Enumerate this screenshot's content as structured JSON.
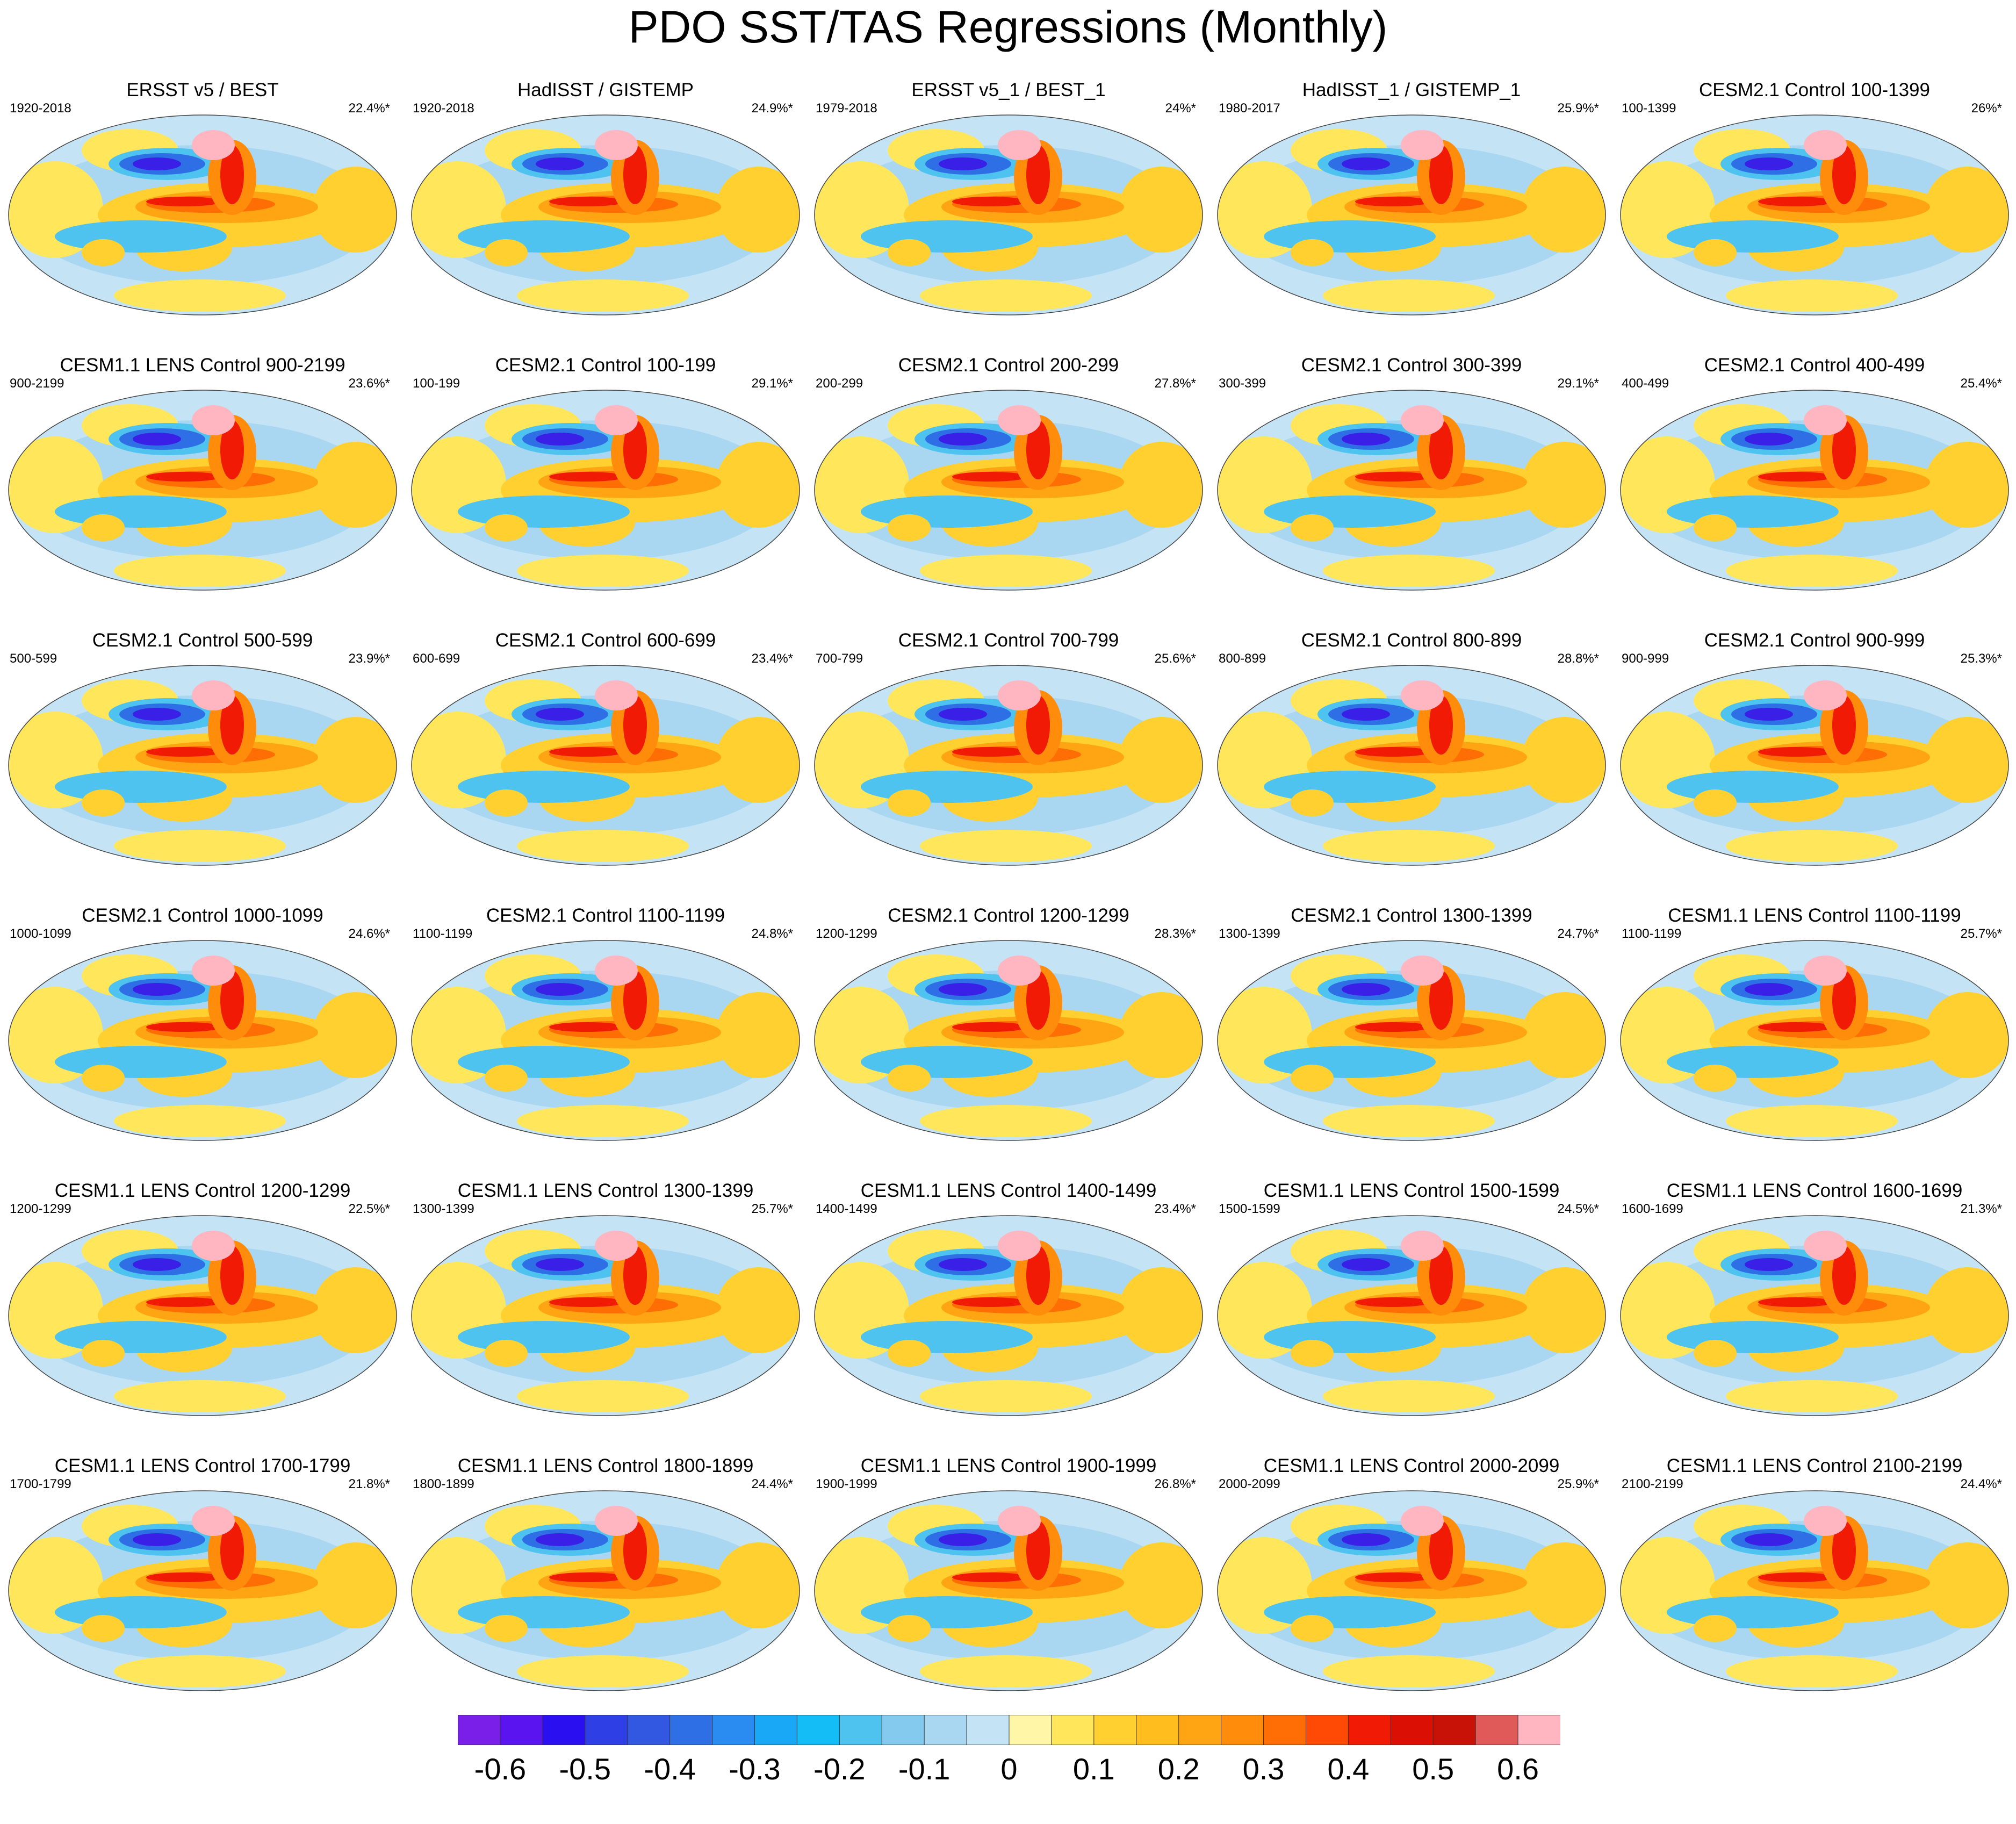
{
  "title": "PDO SST/TAS Regressions (Monthly)",
  "panels": [
    {
      "title": "ERSST v5 / BEST",
      "years": "1920-2018",
      "variance": "22.4%*"
    },
    {
      "title": "HadISST / GISTEMP",
      "years": "1920-2018",
      "variance": "24.9%*"
    },
    {
      "title": "ERSST v5_1 / BEST_1",
      "years": "1979-2018",
      "variance": "24%*"
    },
    {
      "title": "HadISST_1 / GISTEMP_1",
      "years": "1980-2017",
      "variance": "25.9%*"
    },
    {
      "title": "CESM2.1 Control 100-1399",
      "years": "100-1399",
      "variance": "26%*"
    },
    {
      "title": "CESM1.1 LENS Control 900-2199",
      "years": "900-2199",
      "variance": "23.6%*"
    },
    {
      "title": "CESM2.1 Control 100-199",
      "years": "100-199",
      "variance": "29.1%*"
    },
    {
      "title": "CESM2.1 Control 200-299",
      "years": "200-299",
      "variance": "27.8%*"
    },
    {
      "title": "CESM2.1 Control 300-399",
      "years": "300-399",
      "variance": "29.1%*"
    },
    {
      "title": "CESM2.1 Control 400-499",
      "years": "400-499",
      "variance": "25.4%*"
    },
    {
      "title": "CESM2.1 Control 500-599",
      "years": "500-599",
      "variance": "23.9%*"
    },
    {
      "title": "CESM2.1 Control 600-699",
      "years": "600-699",
      "variance": "23.4%*"
    },
    {
      "title": "CESM2.1 Control 700-799",
      "years": "700-799",
      "variance": "25.6%*"
    },
    {
      "title": "CESM2.1 Control 800-899",
      "years": "800-899",
      "variance": "28.8%*"
    },
    {
      "title": "CESM2.1 Control 900-999",
      "years": "900-999",
      "variance": "25.3%*"
    },
    {
      "title": "CESM2.1 Control 1000-1099",
      "years": "1000-1099",
      "variance": "24.6%*"
    },
    {
      "title": "CESM2.1 Control 1100-1199",
      "years": "1100-1199",
      "variance": "24.8%*"
    },
    {
      "title": "CESM2.1 Control 1200-1299",
      "years": "1200-1299",
      "variance": "28.3%*"
    },
    {
      "title": "CESM2.1 Control 1300-1399",
      "years": "1300-1399",
      "variance": "24.7%*"
    },
    {
      "title": "CESM1.1 LENS Control 1100-1199",
      "years": "1100-1199",
      "variance": "25.7%*"
    },
    {
      "title": "CESM1.1 LENS Control 1200-1299",
      "years": "1200-1299",
      "variance": "22.5%*"
    },
    {
      "title": "CESM1.1 LENS Control 1300-1399",
      "years": "1300-1399",
      "variance": "25.7%*"
    },
    {
      "title": "CESM1.1 LENS Control 1400-1499",
      "years": "1400-1499",
      "variance": "23.4%*"
    },
    {
      "title": "CESM1.1 LENS Control 1500-1599",
      "years": "1500-1599",
      "variance": "24.5%*"
    },
    {
      "title": "CESM1.1 LENS Control 1600-1699",
      "years": "1600-1699",
      "variance": "21.3%*"
    },
    {
      "title": "CESM1.1 LENS Control 1700-1799",
      "years": "1700-1799",
      "variance": "21.8%*"
    },
    {
      "title": "CESM1.1 LENS Control 1800-1899",
      "years": "1800-1899",
      "variance": "24.4%*"
    },
    {
      "title": "CESM1.1 LENS Control 1900-1999",
      "years": "1900-1999",
      "variance": "26.8%*"
    },
    {
      "title": "CESM1.1 LENS Control 2000-2099",
      "years": "2000-2099",
      "variance": "25.9%*"
    },
    {
      "title": "CESM1.1 LENS Control 2100-2199",
      "years": "2100-2199",
      "variance": "24.4%*"
    }
  ],
  "colorbar": {
    "colors": [
      "#7a1fe8",
      "#5a14f0",
      "#2a10f0",
      "#2f3fe6",
      "#3257e0",
      "#2f6fe6",
      "#2a8cf0",
      "#19a8f5",
      "#14bdf5",
      "#4ec3ef",
      "#84c9ee",
      "#a9d6f0",
      "#c4e4f5",
      "#fff6a8",
      "#ffe65a",
      "#ffd030",
      "#ffbe1e",
      "#ffa514",
      "#ff8c0a",
      "#ff6e05",
      "#ff4a05",
      "#f01a05",
      "#dc0f05",
      "#c81208",
      "#e05a5a",
      "#ffb6c1"
    ],
    "labels": [
      "-0.6",
      "-0.5",
      "-0.4",
      "-0.3",
      "-0.2",
      "-0.1",
      "0",
      "0.1",
      "0.2",
      "0.3",
      "0.4",
      "0.5",
      "0.6"
    ]
  }
}
